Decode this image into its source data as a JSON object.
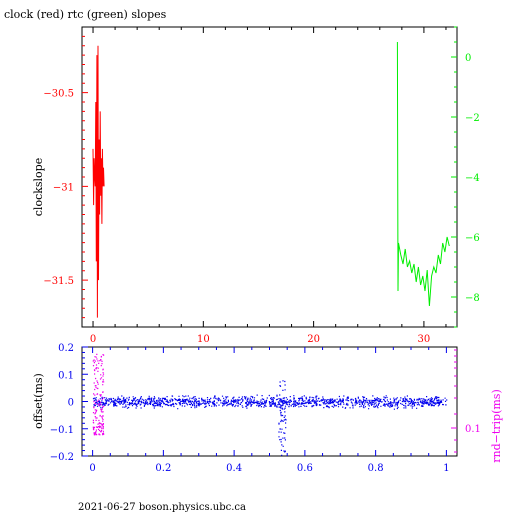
{
  "title": "clock (red) rtc (green) slopes",
  "footer": "2021-06-27  boson.physics.ubc.ca",
  "colors": {
    "red": "#ff0000",
    "green": "#00ee00",
    "blue": "#0000ee",
    "magenta": "#ee00ee",
    "axis": "#000000"
  },
  "chart_data": [
    {
      "type": "line",
      "title": "clock (red) rtc (green) slopes",
      "ylabel": "clockslope",
      "xlim": [
        -1,
        33
      ],
      "x_ticks": [
        0,
        10,
        20,
        30
      ],
      "ylim_left": [
        -31.75,
        -30.15
      ],
      "y_ticks_left": [
        -30.5,
        -31,
        -31.5
      ],
      "y_tick_labels_left": [
        "−30.5",
        "−31",
        "−31.5"
      ],
      "ylim_right": [
        -9.0,
        1.0
      ],
      "y_ticks_right": [
        0,
        -2,
        -4,
        -6,
        -8
      ],
      "y_tick_labels_right": [
        "0",
        "−2",
        "−4",
        "−6",
        "−8"
      ],
      "series": [
        {
          "axis": "left",
          "color": "#ff0000",
          "x": [
            0.0,
            0.05,
            0.1,
            0.15,
            0.2,
            0.25,
            0.3,
            0.35,
            0.4,
            0.45,
            0.5,
            0.55,
            0.6,
            0.65,
            0.7,
            0.75,
            0.8,
            0.85,
            0.9,
            0.95,
            1.0
          ],
          "y": [
            -30.8,
            -31.1,
            -30.85,
            -30.95,
            -31.0,
            -30.55,
            -31.4,
            -30.3,
            -31.7,
            -30.25,
            -31.5,
            -30.75,
            -31.15,
            -30.6,
            -31.05,
            -30.85,
            -31.2,
            -30.8,
            -31.0,
            -30.9,
            -31.0
          ]
        },
        {
          "axis": "right",
          "color": "#00ee00",
          "x": [
            27.6,
            27.65,
            27.7,
            27.9,
            28.1,
            28.3,
            28.5,
            28.7,
            28.9,
            29.1,
            29.3,
            29.5,
            29.7,
            29.9,
            30.1,
            30.3,
            30.5,
            30.7,
            30.9,
            31.1,
            31.3,
            31.5,
            31.7,
            31.9,
            32.1,
            32.3
          ],
          "y": [
            0.5,
            -7.8,
            -6.2,
            -6.6,
            -6.9,
            -6.4,
            -7.0,
            -6.8,
            -7.2,
            -6.9,
            -7.5,
            -7.0,
            -7.6,
            -7.3,
            -7.8,
            -7.1,
            -8.3,
            -7.3,
            -7.0,
            -7.2,
            -6.6,
            -6.9,
            -6.2,
            -6.5,
            -6.0,
            -6.3
          ]
        }
      ]
    },
    {
      "type": "scatter",
      "ylabel_left": "offset(ms)",
      "ylabel_right": "rnd−trip(ms)",
      "xlim": [
        -0.03,
        1.03
      ],
      "x_ticks": [
        0,
        0.2,
        0.4,
        0.6,
        0.8,
        1
      ],
      "x_tick_labels": [
        "0",
        "0.2",
        "0.4",
        "0.6",
        "0.8",
        "1"
      ],
      "ylim_left": [
        -0.2,
        0.2
      ],
      "y_ticks_left": [
        0.2,
        0.1,
        0,
        -0.1,
        -0.2
      ],
      "y_tick_labels_left": [
        "0.2",
        "0.1",
        "0",
        "−0.1",
        "−0.2"
      ],
      "y_right_tick_label": "0.1",
      "series": [
        {
          "name": "offset",
          "color": "#0000ee",
          "x_range": [
            0.0,
            1.0
          ],
          "y_center": 0.0,
          "y_spread": 0.03,
          "spike_x": 0.535,
          "spike_y_range": [
            -0.2,
            0.08
          ]
        },
        {
          "name": "rnd-trip",
          "color": "#ee00ee",
          "x_range": [
            0.0,
            0.03
          ],
          "y_range": [
            -0.12,
            0.18
          ]
        }
      ]
    }
  ]
}
